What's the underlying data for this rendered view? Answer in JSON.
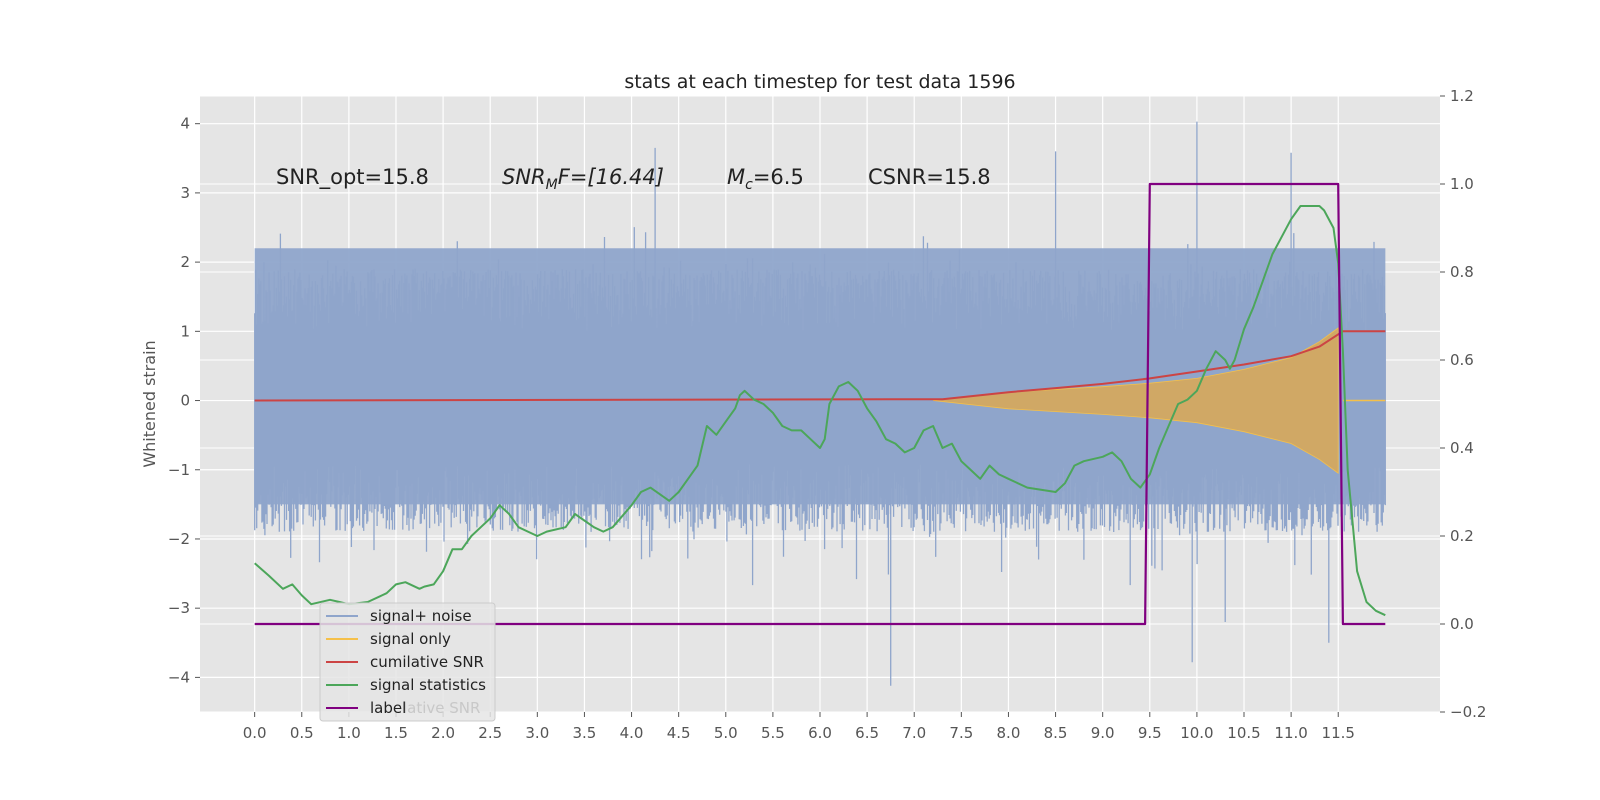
{
  "chart_data": {
    "type": "line",
    "title": "stats at each timestep for test data 1596",
    "xlabel": "",
    "ylabel": "Whitened strain",
    "xlim": [
      -0.58,
      12.58
    ],
    "ylim": [
      -4.5,
      4.4
    ],
    "y2lim": [
      -0.2,
      1.2
    ],
    "grid": true,
    "legend_position": "lower-left",
    "x_ticks": [
      "0.0",
      "0.5",
      "1.0",
      "1.5",
      "2.0",
      "2.5",
      "3.0",
      "3.5",
      "4.0",
      "4.5",
      "5.0",
      "5.5",
      "6.0",
      "6.5",
      "7.0",
      "7.5",
      "8.0",
      "8.5",
      "9.0",
      "9.5",
      "10.0",
      "10.5",
      "11.0",
      "11.5"
    ],
    "y_ticks": [
      "4",
      "3",
      "2",
      "1",
      "0",
      "−1",
      "−2",
      "−3",
      "−4"
    ],
    "y2_ticks": [
      "1.2",
      "1.0",
      "0.8",
      "0.6",
      "0.4",
      "0.2",
      "0.0",
      "−0.2"
    ],
    "annotations": [
      "SNR_opt=15.8",
      "SNR",
      "M",
      "F=[16.44]",
      "c",
      "=6.5",
      "CSNR=15.8"
    ],
    "legend": [
      "signal+ noise",
      "signal only",
      "cumilative SNR",
      "signal statistics",
      "label"
    ],
    "legend_ghost": "lative SNR",
    "colors": {
      "signal_noise": "#8fa5cb",
      "signal_only": "#f5c04a",
      "signal_fill": "#d7a85a",
      "cumulative_snr": "#cc4444",
      "signal_statistics": "#4ca65a",
      "label": "#800080",
      "plot_bg": "#e5e5e5"
    },
    "series": [
      {
        "name": "signal+ noise",
        "axis": "left",
        "x_range": [
          0.0,
          12.0
        ],
        "band_typical": [
          -1.5,
          2.2
        ],
        "peaks": [
          [
            10.0,
            4.03
          ],
          [
            11.0,
            3.58
          ],
          [
            4.25,
            3.65
          ],
          [
            8.5,
            3.6
          ],
          [
            6.75,
            -4.12
          ],
          [
            9.95,
            -3.78
          ],
          [
            11.4,
            -3.5
          ],
          [
            10.3,
            -3.2
          ]
        ]
      },
      {
        "name": "signal only",
        "axis": "left",
        "x_range": [
          7.2,
          11.55
        ],
        "envelope": [
          [
            7.2,
            0.0
          ],
          [
            8.0,
            0.12
          ],
          [
            9.0,
            0.2
          ],
          [
            9.5,
            0.25
          ],
          [
            10.0,
            0.32
          ],
          [
            10.5,
            0.45
          ],
          [
            11.0,
            0.62
          ],
          [
            11.3,
            0.85
          ],
          [
            11.5,
            1.05
          ]
        ],
        "after": 0.0
      },
      {
        "name": "cumilative SNR",
        "axis": "left",
        "points": [
          [
            0.0,
            0.0
          ],
          [
            7.3,
            0.02
          ],
          [
            8.0,
            0.12
          ],
          [
            8.5,
            0.18
          ],
          [
            9.0,
            0.24
          ],
          [
            9.5,
            0.32
          ],
          [
            10.0,
            0.42
          ],
          [
            10.5,
            0.52
          ],
          [
            11.0,
            0.64
          ],
          [
            11.3,
            0.78
          ],
          [
            11.55,
            1.0
          ],
          [
            12.0,
            1.0
          ]
        ]
      },
      {
        "name": "signal statistics",
        "axis": "right",
        "points": [
          [
            0.0,
            0.138
          ],
          [
            0.15,
            0.11
          ],
          [
            0.3,
            0.08
          ],
          [
            0.4,
            0.09
          ],
          [
            0.5,
            0.065
          ],
          [
            0.6,
            0.045
          ],
          [
            0.8,
            0.055
          ],
          [
            0.9,
            0.05
          ],
          [
            1.0,
            0.045
          ],
          [
            1.2,
            0.05
          ],
          [
            1.4,
            0.07
          ],
          [
            1.5,
            0.09
          ],
          [
            1.6,
            0.095
          ],
          [
            1.75,
            0.08
          ],
          [
            1.8,
            0.085
          ],
          [
            1.9,
            0.09
          ],
          [
            2.0,
            0.12
          ],
          [
            2.1,
            0.17
          ],
          [
            2.2,
            0.17
          ],
          [
            2.3,
            0.2
          ],
          [
            2.4,
            0.22
          ],
          [
            2.5,
            0.24
          ],
          [
            2.6,
            0.27
          ],
          [
            2.7,
            0.25
          ],
          [
            2.8,
            0.22
          ],
          [
            2.9,
            0.21
          ],
          [
            3.0,
            0.2
          ],
          [
            3.1,
            0.21
          ],
          [
            3.3,
            0.22
          ],
          [
            3.4,
            0.25
          ],
          [
            3.6,
            0.22
          ],
          [
            3.7,
            0.21
          ],
          [
            3.8,
            0.22
          ],
          [
            4.0,
            0.27
          ],
          [
            4.1,
            0.3
          ],
          [
            4.2,
            0.31
          ],
          [
            4.4,
            0.28
          ],
          [
            4.5,
            0.3
          ],
          [
            4.6,
            0.33
          ],
          [
            4.7,
            0.36
          ],
          [
            4.8,
            0.45
          ],
          [
            4.9,
            0.43
          ],
          [
            5.0,
            0.46
          ],
          [
            5.1,
            0.49
          ],
          [
            5.15,
            0.52
          ],
          [
            5.2,
            0.53
          ],
          [
            5.3,
            0.51
          ],
          [
            5.4,
            0.5
          ],
          [
            5.5,
            0.48
          ],
          [
            5.6,
            0.45
          ],
          [
            5.7,
            0.44
          ],
          [
            5.8,
            0.44
          ],
          [
            5.9,
            0.42
          ],
          [
            6.0,
            0.4
          ],
          [
            6.05,
            0.42
          ],
          [
            6.1,
            0.5
          ],
          [
            6.2,
            0.54
          ],
          [
            6.3,
            0.55
          ],
          [
            6.4,
            0.53
          ],
          [
            6.5,
            0.49
          ],
          [
            6.6,
            0.46
          ],
          [
            6.7,
            0.42
          ],
          [
            6.8,
            0.41
          ],
          [
            6.9,
            0.39
          ],
          [
            7.0,
            0.4
          ],
          [
            7.1,
            0.44
          ],
          [
            7.2,
            0.45
          ],
          [
            7.3,
            0.4
          ],
          [
            7.4,
            0.41
          ],
          [
            7.5,
            0.37
          ],
          [
            7.6,
            0.35
          ],
          [
            7.7,
            0.33
          ],
          [
            7.8,
            0.36
          ],
          [
            7.9,
            0.34
          ],
          [
            8.0,
            0.33
          ],
          [
            8.2,
            0.31
          ],
          [
            8.5,
            0.3
          ],
          [
            8.6,
            0.32
          ],
          [
            8.7,
            0.36
          ],
          [
            8.8,
            0.37
          ],
          [
            9.0,
            0.38
          ],
          [
            9.1,
            0.39
          ],
          [
            9.2,
            0.37
          ],
          [
            9.3,
            0.33
          ],
          [
            9.4,
            0.31
          ],
          [
            9.5,
            0.34
          ],
          [
            9.6,
            0.4
          ],
          [
            9.7,
            0.45
          ],
          [
            9.8,
            0.5
          ],
          [
            9.9,
            0.51
          ],
          [
            10.0,
            0.53
          ],
          [
            10.1,
            0.58
          ],
          [
            10.2,
            0.62
          ],
          [
            10.3,
            0.6
          ],
          [
            10.35,
            0.58
          ],
          [
            10.4,
            0.6
          ],
          [
            10.5,
            0.67
          ],
          [
            10.6,
            0.72
          ],
          [
            10.7,
            0.78
          ],
          [
            10.8,
            0.84
          ],
          [
            10.9,
            0.88
          ],
          [
            11.0,
            0.92
          ],
          [
            11.1,
            0.95
          ],
          [
            11.2,
            0.95
          ],
          [
            11.3,
            0.95
          ],
          [
            11.35,
            0.94
          ],
          [
            11.45,
            0.9
          ],
          [
            11.5,
            0.82
          ],
          [
            11.55,
            0.62
          ],
          [
            11.6,
            0.35
          ],
          [
            11.7,
            0.12
          ],
          [
            11.8,
            0.05
          ],
          [
            11.9,
            0.03
          ],
          [
            12.0,
            0.02
          ]
        ]
      },
      {
        "name": "label",
        "axis": "right",
        "points": [
          [
            0.0,
            0.0
          ],
          [
            9.4,
            0.0
          ],
          [
            9.45,
            0.0
          ],
          [
            9.5,
            1.0
          ],
          [
            11.5,
            1.0
          ],
          [
            11.55,
            0.0
          ],
          [
            12.0,
            0.0
          ]
        ]
      }
    ]
  }
}
